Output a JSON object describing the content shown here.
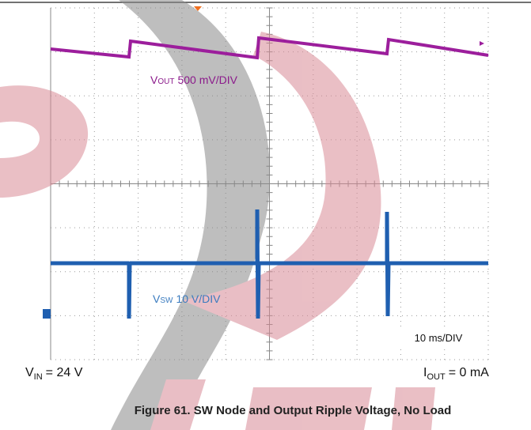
{
  "channels": {
    "vout": {
      "symbol": "V",
      "subscript": "OUT",
      "scale": "500 mV/DIV"
    },
    "vsw": {
      "symbol": "V",
      "subscript": "SW",
      "scale": "10 V/DIV"
    }
  },
  "timebase": "10 ms/DIV",
  "conditions": {
    "vin": {
      "symbol": "V",
      "subscript": "IN",
      "value": "= 24 V"
    },
    "iout": {
      "symbol": "I",
      "subscript": "OUT",
      "value": "= 0 mA"
    }
  },
  "caption": "Figure 61. SW Node and Output Ripple Voltage, No Load"
}
